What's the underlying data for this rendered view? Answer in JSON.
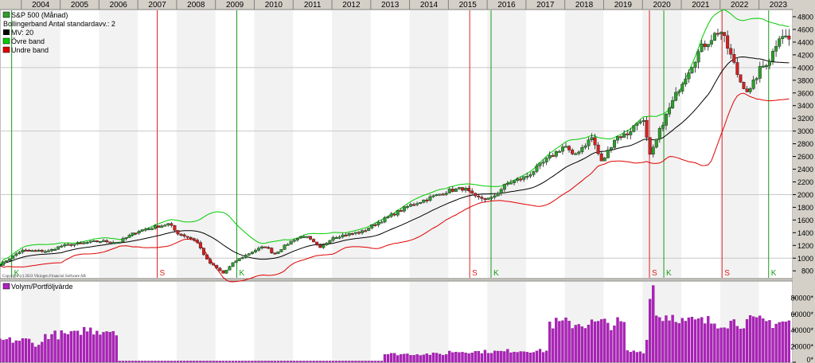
{
  "colors": {
    "up": "#2e9e2e",
    "down": "#d42020",
    "upper": "#00cc00",
    "lower": "#e00000",
    "ma": "#000000",
    "buy": "#1a9a1a",
    "sell": "#e02020",
    "volume": "#b020c0",
    "volume_edge": "#6a006a"
  },
  "legend": {
    "main": [
      {
        "label": "S&P 500 (Månad)",
        "color": "#2e9e2e",
        "icon": "candle-icon"
      },
      {
        "label": "Bollingerband  Antal standardavv.: 2",
        "color": null,
        "icon": null
      },
      {
        "label": "MV: 20",
        "color": "#000000",
        "icon": "swatch-icon"
      },
      {
        "label": "Övre band",
        "color": "#00cc00",
        "icon": "swatch-icon"
      },
      {
        "label": "Undre band",
        "color": "#e00000",
        "icon": "swatch-icon"
      }
    ],
    "volume": {
      "label": "Volym/Portföljvärde",
      "color": "#b020c0"
    }
  },
  "copyright": "Copyright (c) 2023 Vikingen Financial Software AB",
  "chart_data": [
    {
      "type": "bar",
      "name": "S&P 500 (Månad)",
      "x_start": 2003.45,
      "x_step": 0.0833,
      "x_range": [
        2003.45,
        2023.85
      ],
      "x_ticks": [
        "2004",
        "2005",
        "2006",
        "2007",
        "2008",
        "2009",
        "2010",
        "2011",
        "2012",
        "2013",
        "2014",
        "2015",
        "2016",
        "2017",
        "2018",
        "2019",
        "2020",
        "2021",
        "2022",
        "2023"
      ],
      "y_ticks": [
        "800",
        "1000",
        "1200",
        "1400",
        "1600",
        "1800",
        "2000",
        "2200",
        "2400",
        "2600",
        "2800",
        "3000",
        "3200",
        "3400",
        "3600",
        "3800",
        "4000",
        "4200",
        "4400",
        "4600",
        "4800"
      ],
      "ylim": [
        690,
        4900
      ],
      "grid": true,
      "anchors": [
        [
          2003.45,
          900
        ],
        [
          2004.0,
          1120
        ],
        [
          2004.7,
          1110
        ],
        [
          2005.0,
          1190
        ],
        [
          2006.0,
          1270
        ],
        [
          2006.5,
          1250
        ],
        [
          2007.0,
          1430
        ],
        [
          2007.8,
          1540
        ],
        [
          2008.0,
          1400
        ],
        [
          2008.5,
          1280
        ],
        [
          2008.8,
          950
        ],
        [
          2009.2,
          760
        ],
        [
          2009.5,
          950
        ],
        [
          2010.0,
          1120
        ],
        [
          2010.3,
          1190
        ],
        [
          2010.5,
          1060
        ],
        [
          2011.0,
          1290
        ],
        [
          2011.3,
          1360
        ],
        [
          2011.7,
          1150
        ],
        [
          2012.0,
          1330
        ],
        [
          2012.8,
          1420
        ],
        [
          2013.0,
          1500
        ],
        [
          2014.0,
          1830
        ],
        [
          2015.0,
          2060
        ],
        [
          2015.4,
          2100
        ],
        [
          2015.7,
          1950
        ],
        [
          2016.1,
          1930
        ],
        [
          2016.5,
          2170
        ],
        [
          2017.0,
          2280
        ],
        [
          2018.0,
          2780
        ],
        [
          2018.2,
          2600
        ],
        [
          2018.7,
          2900
        ],
        [
          2018.95,
          2500
        ],
        [
          2019.3,
          2900
        ],
        [
          2019.6,
          2950
        ],
        [
          2020.0,
          3230
        ],
        [
          2020.2,
          2580
        ],
        [
          2020.5,
          3100
        ],
        [
          2021.0,
          3750
        ],
        [
          2021.5,
          4300
        ],
        [
          2022.0,
          4600
        ],
        [
          2022.3,
          4150
        ],
        [
          2022.5,
          3800
        ],
        [
          2022.75,
          3600
        ],
        [
          2023.0,
          3950
        ],
        [
          2023.3,
          4150
        ],
        [
          2023.55,
          4550
        ],
        [
          2023.85,
          4400
        ]
      ],
      "bands": {
        "ma_period": 20,
        "std_devs": 2,
        "series": [
          "MV: 20",
          "Övre band",
          "Undre band"
        ]
      },
      "signals": [
        {
          "date": 2003.75,
          "type": "K"
        },
        {
          "date": 2007.5,
          "type": "S"
        },
        {
          "date": 2009.55,
          "type": "K"
        },
        {
          "date": 2015.55,
          "type": "S"
        },
        {
          "date": 2016.1,
          "type": "K"
        },
        {
          "date": 2020.18,
          "type": "S"
        },
        {
          "date": 2020.55,
          "type": "K"
        },
        {
          "date": 2022.05,
          "type": "S"
        },
        {
          "date": 2023.25,
          "type": "K"
        }
      ]
    },
    {
      "type": "bar",
      "name": "Volym/Portföljvärde",
      "x_start": 2003.45,
      "x_step": 0.0833,
      "y_ticks": [
        "0*",
        "20000*",
        "40000*",
        "60000*",
        "80000*"
      ],
      "ylim": [
        0,
        100000
      ],
      "levels": [
        [
          2003.45,
          27000
        ],
        [
          2004.2,
          23000
        ],
        [
          2004.6,
          34000
        ],
        [
          2005.5,
          40000
        ],
        [
          2006.3,
          40000
        ],
        [
          2006.5,
          1500
        ],
        [
          2013.3,
          10000
        ],
        [
          2015.0,
          13000
        ],
        [
          2016.5,
          14000
        ],
        [
          2017.5,
          14000
        ],
        [
          2017.6,
          48000
        ],
        [
          2019.5,
          46000
        ],
        [
          2019.6,
          13000
        ],
        [
          2020.05,
          12000
        ],
        [
          2020.1,
          27000
        ],
        [
          2020.18,
          95000
        ],
        [
          2020.3,
          58000
        ],
        [
          2021.0,
          50000
        ],
        [
          2022.0,
          50000
        ],
        [
          2023.85,
          50000
        ]
      ]
    }
  ]
}
